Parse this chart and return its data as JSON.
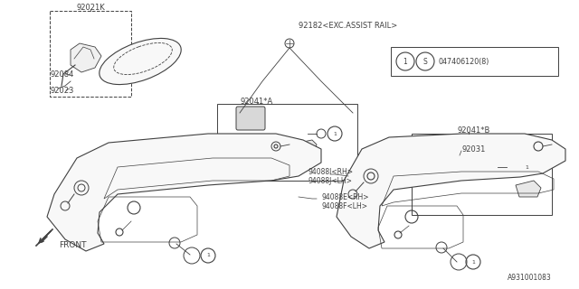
{
  "bg_color": "#ffffff",
  "line_color": "#404040",
  "diagram_id": "A931001083",
  "label_92021K": "92021K",
  "label_92084": "92084",
  "label_92023": "92023",
  "label_92182": "92182<EXC.ASSIST RAIL>",
  "label_92041A": "92041*A",
  "label_92041B": "92041*B",
  "label_94088I": "94088I<RH>",
  "label_94088J": "94088J<LH>",
  "label_94088E": "94088E<RH>",
  "label_94088F": "94088F<LH>",
  "label_92031": "92031",
  "label_front": "FRONT",
  "fastener_num": "047406120(8)"
}
